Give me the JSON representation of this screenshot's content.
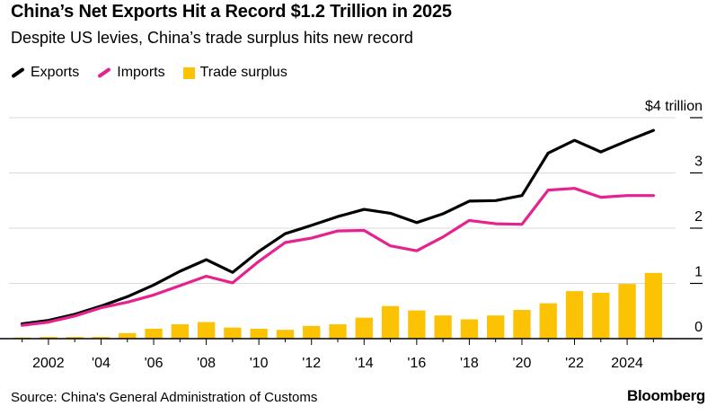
{
  "title": "China’s Net Exports Hit a Record $1.2 Trillion in 2025",
  "subtitle": "Despite US levies, China’s trade surplus hits new record",
  "legend": {
    "exports": "Exports",
    "imports": "Imports",
    "surplus": "Trade surplus"
  },
  "source": "Source: China's General Administration of Customs",
  "brand": "Bloomberg",
  "colors": {
    "exports": "#000000",
    "imports": "#e5228f",
    "surplus": "#fbc304",
    "grid": "#d9d9d9",
    "axis": "#000000"
  },
  "chart_data": {
    "type": "bar",
    "x": [
      2001,
      2002,
      2003,
      2004,
      2005,
      2006,
      2007,
      2008,
      2009,
      2010,
      2011,
      2012,
      2013,
      2014,
      2015,
      2016,
      2017,
      2018,
      2019,
      2020,
      2021,
      2022,
      2023,
      2024,
      2025
    ],
    "series": [
      {
        "name": "Exports",
        "type": "line",
        "values": [
          0.27,
          0.33,
          0.44,
          0.59,
          0.76,
          0.97,
          1.22,
          1.43,
          1.2,
          1.58,
          1.9,
          2.05,
          2.21,
          2.34,
          2.27,
          2.1,
          2.26,
          2.49,
          2.5,
          2.59,
          3.36,
          3.59,
          3.38,
          3.58,
          3.77
        ]
      },
      {
        "name": "Imports",
        "type": "line",
        "values": [
          0.24,
          0.3,
          0.41,
          0.56,
          0.66,
          0.79,
          0.96,
          1.13,
          1.01,
          1.4,
          1.74,
          1.82,
          1.95,
          1.96,
          1.68,
          1.59,
          1.84,
          2.14,
          2.08,
          2.07,
          2.69,
          2.72,
          2.56,
          2.59,
          2.59
        ]
      },
      {
        "name": "Trade surplus",
        "type": "bar",
        "values": [
          0.02,
          0.03,
          0.03,
          0.03,
          0.1,
          0.18,
          0.26,
          0.3,
          0.2,
          0.18,
          0.16,
          0.23,
          0.26,
          0.38,
          0.59,
          0.51,
          0.42,
          0.35,
          0.42,
          0.52,
          0.64,
          0.86,
          0.83,
          0.99,
          1.19
        ]
      }
    ],
    "x_tick_labels": [
      {
        "x": 2002,
        "label": "2002"
      },
      {
        "x": 2004,
        "label": "'04"
      },
      {
        "x": 2006,
        "label": "'06"
      },
      {
        "x": 2008,
        "label": "'08"
      },
      {
        "x": 2010,
        "label": "'10"
      },
      {
        "x": 2012,
        "label": "'12"
      },
      {
        "x": 2014,
        "label": "'14"
      },
      {
        "x": 2016,
        "label": "'16"
      },
      {
        "x": 2018,
        "label": "'18"
      },
      {
        "x": 2020,
        "label": "'20"
      },
      {
        "x": 2022,
        "label": "'22"
      },
      {
        "x": 2024,
        "label": "2024"
      }
    ],
    "y_tick_labels": [
      {
        "y": 0,
        "label": "0"
      },
      {
        "y": 1,
        "label": "1"
      },
      {
        "y": 2,
        "label": "2"
      },
      {
        "y": 3,
        "label": "3"
      },
      {
        "y": 4,
        "label": "$4 trillion"
      }
    ],
    "xlim": [
      2000.5,
      2025.5
    ],
    "ylim": [
      0,
      4
    ],
    "xlabel": "",
    "ylabel": "",
    "grid": true,
    "legend_position": "top-left"
  }
}
